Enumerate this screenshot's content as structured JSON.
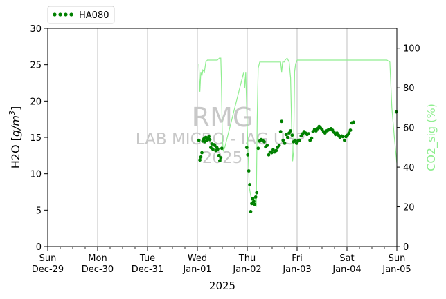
{
  "chart_data": {
    "type": "line",
    "watermark": {
      "line1": "RMG",
      "line2": "LAB MICRO - IAG USP",
      "line3": "2025"
    },
    "xlabel": "2025",
    "x_ticks": [
      {
        "day": "Sun",
        "date": "Dec-29"
      },
      {
        "day": "Mon",
        "date": "Dec-30"
      },
      {
        "day": "Tue",
        "date": "Dec-31"
      },
      {
        "day": "Wed",
        "date": "Jan-01"
      },
      {
        "day": "Thu",
        "date": "Jan-02"
      },
      {
        "day": "Fri",
        "date": "Jan-03"
      },
      {
        "day": "Sat",
        "date": "Jan-04"
      },
      {
        "day": "Sun",
        "date": "Jan-05"
      }
    ],
    "x_range_days": [
      0,
      7
    ],
    "left_axis": {
      "label_main": "H2O [",
      "label_unit": "g/m",
      "label_sup": "3",
      "label_end": "]",
      "ylim": [
        0,
        30
      ],
      "ticks": [
        0,
        5,
        10,
        15,
        20,
        25,
        30
      ]
    },
    "right_axis": {
      "label": "CO2_sig (%)",
      "ylim": [
        0,
        110
      ],
      "ticks": [
        0,
        20,
        40,
        60,
        80,
        100
      ]
    },
    "grid": "x-major-vertical",
    "legend": {
      "placement": "top-left-outside",
      "entries": [
        "HA080"
      ]
    },
    "colors": {
      "h2o": "#008000",
      "co2": "#90ee90"
    },
    "series": [
      {
        "name": "HA080",
        "axis": "left",
        "style": "dots",
        "points": [
          [
            3.03,
            14.6
          ],
          [
            3.05,
            11.9
          ],
          [
            3.07,
            12.3
          ],
          [
            3.09,
            12.9
          ],
          [
            3.11,
            14.5
          ],
          [
            3.13,
            14.8
          ],
          [
            3.15,
            14.4
          ],
          [
            3.17,
            15.0
          ],
          [
            3.19,
            14.6
          ],
          [
            3.21,
            14.8
          ],
          [
            3.23,
            15.1
          ],
          [
            3.25,
            14.7
          ],
          [
            3.27,
            13.6
          ],
          [
            3.29,
            14.1
          ],
          [
            3.31,
            13.4
          ],
          [
            3.33,
            14.0
          ],
          [
            3.35,
            13.9
          ],
          [
            3.37,
            13.2
          ],
          [
            3.39,
            13.6
          ],
          [
            3.41,
            13.4
          ],
          [
            3.43,
            12.5
          ],
          [
            3.45,
            11.8
          ],
          [
            3.47,
            12.2
          ],
          [
            3.49,
            13.5
          ],
          [
            3.99,
            13.6
          ],
          [
            4.01,
            12.6
          ],
          [
            4.03,
            10.4
          ],
          [
            4.05,
            8.5
          ],
          [
            4.07,
            4.8
          ],
          [
            4.09,
            5.9
          ],
          [
            4.11,
            6.6
          ],
          [
            4.13,
            6.2
          ],
          [
            4.15,
            5.8
          ],
          [
            4.17,
            6.8
          ],
          [
            4.19,
            7.4
          ],
          [
            4.22,
            13.5
          ],
          [
            4.25,
            14.5
          ],
          [
            4.28,
            14.7
          ],
          [
            4.31,
            14.6
          ],
          [
            4.34,
            14.4
          ],
          [
            4.37,
            13.7
          ],
          [
            4.4,
            13.9
          ],
          [
            4.43,
            12.6
          ],
          [
            4.46,
            13.0
          ],
          [
            4.49,
            12.9
          ],
          [
            4.52,
            13.3
          ],
          [
            4.55,
            13.0
          ],
          [
            4.58,
            13.2
          ],
          [
            4.61,
            13.6
          ],
          [
            4.64,
            13.9
          ],
          [
            4.67,
            15.8
          ],
          [
            4.69,
            17.2
          ],
          [
            4.72,
            14.6
          ],
          [
            4.75,
            14.2
          ],
          [
            4.78,
            15.4
          ],
          [
            4.81,
            15.0
          ],
          [
            4.84,
            15.6
          ],
          [
            4.87,
            15.9
          ],
          [
            4.9,
            15.3
          ],
          [
            4.93,
            14.4
          ],
          [
            4.96,
            14.6
          ],
          [
            4.99,
            14.2
          ],
          [
            5.02,
            14.5
          ],
          [
            5.05,
            14.6
          ],
          [
            5.08,
            15.2
          ],
          [
            5.11,
            15.5
          ],
          [
            5.14,
            15.8
          ],
          [
            5.17,
            15.6
          ],
          [
            5.2,
            15.4
          ],
          [
            5.23,
            15.5
          ],
          [
            5.26,
            14.6
          ],
          [
            5.29,
            14.9
          ],
          [
            5.32,
            15.8
          ],
          [
            5.35,
            16.1
          ],
          [
            5.38,
            15.9
          ],
          [
            5.41,
            16.2
          ],
          [
            5.44,
            16.5
          ],
          [
            5.47,
            16.3
          ],
          [
            5.5,
            16.1
          ],
          [
            5.53,
            15.8
          ],
          [
            5.56,
            15.6
          ],
          [
            5.59,
            15.9
          ],
          [
            5.62,
            16.0
          ],
          [
            5.65,
            16.1
          ],
          [
            5.68,
            16.2
          ],
          [
            5.71,
            16.0
          ],
          [
            5.74,
            15.7
          ],
          [
            5.77,
            15.4
          ],
          [
            5.8,
            15.6
          ],
          [
            5.83,
            15.3
          ],
          [
            5.86,
            15.0
          ],
          [
            5.89,
            15.2
          ],
          [
            5.92,
            15.1
          ],
          [
            5.95,
            14.6
          ],
          [
            5.98,
            15.1
          ],
          [
            6.01,
            15.3
          ],
          [
            6.04,
            15.6
          ],
          [
            6.07,
            16.0
          ],
          [
            6.1,
            17.0
          ],
          [
            6.13,
            17.1
          ],
          [
            6.99,
            18.5
          ]
        ]
      },
      {
        "name": "",
        "axis": "right",
        "style": "line",
        "points": [
          [
            3.03,
            92
          ],
          [
            3.05,
            78
          ],
          [
            3.07,
            88
          ],
          [
            3.09,
            86
          ],
          [
            3.11,
            89
          ],
          [
            3.14,
            88
          ],
          [
            3.17,
            93
          ],
          [
            3.2,
            94
          ],
          [
            3.24,
            94
          ],
          [
            3.28,
            94
          ],
          [
            3.32,
            94
          ],
          [
            3.36,
            94
          ],
          [
            3.4,
            94
          ],
          [
            3.44,
            95
          ],
          [
            3.47,
            95
          ],
          [
            3.48,
            85
          ],
          [
            3.5,
            55
          ],
          [
            3.52,
            48
          ],
          [
            3.55,
            50
          ],
          [
            3.93,
            88
          ],
          [
            3.95,
            80
          ],
          [
            3.97,
            88
          ],
          [
            4.0,
            60
          ],
          [
            4.04,
            30
          ],
          [
            4.08,
            24
          ],
          [
            4.11,
            22
          ],
          [
            4.14,
            24
          ],
          [
            4.16,
            25
          ],
          [
            4.18,
            20
          ],
          [
            4.2,
            65
          ],
          [
            4.22,
            90
          ],
          [
            4.25,
            93
          ],
          [
            4.3,
            93
          ],
          [
            4.35,
            93
          ],
          [
            4.4,
            93
          ],
          [
            4.45,
            93
          ],
          [
            4.5,
            93
          ],
          [
            4.6,
            93
          ],
          [
            4.67,
            93
          ],
          [
            4.69,
            88
          ],
          [
            4.71,
            93
          ],
          [
            4.74,
            93
          ],
          [
            4.76,
            94
          ],
          [
            4.8,
            95
          ],
          [
            4.84,
            93
          ],
          [
            4.87,
            85
          ],
          [
            4.89,
            60
          ],
          [
            4.91,
            43
          ],
          [
            4.93,
            48
          ],
          [
            4.95,
            88
          ],
          [
            4.97,
            92
          ],
          [
            5.0,
            94
          ],
          [
            5.1,
            94
          ],
          [
            5.2,
            94
          ],
          [
            5.3,
            94
          ],
          [
            5.4,
            94
          ],
          [
            5.5,
            94
          ],
          [
            5.6,
            94
          ],
          [
            5.7,
            94
          ],
          [
            5.8,
            94
          ],
          [
            5.9,
            94
          ],
          [
            6.0,
            94
          ],
          [
            6.1,
            94
          ],
          [
            6.2,
            94
          ],
          [
            6.4,
            94
          ],
          [
            6.6,
            94
          ],
          [
            6.8,
            94
          ],
          [
            6.86,
            93
          ],
          [
            6.9,
            70
          ],
          [
            6.95,
            55
          ],
          [
            7.0,
            42
          ]
        ]
      }
    ]
  }
}
